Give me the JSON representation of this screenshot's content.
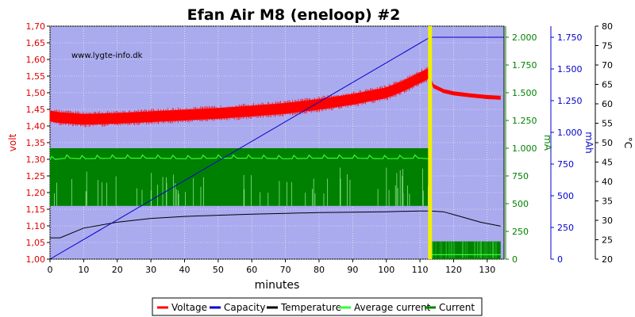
{
  "chart_data": {
    "type": "line",
    "title": "Efan Air M8 (eneloop) #2",
    "watermark": "www.lygte-info.dk",
    "xlabel": "minutes",
    "xlim": [
      0,
      135
    ],
    "x_ticks": [
      "0",
      "10",
      "20",
      "30",
      "40",
      "50",
      "60",
      "70",
      "80",
      "90",
      "100",
      "110",
      "120",
      "130"
    ],
    "background": "#aaaaee",
    "grid": true,
    "legend_position": "bottom",
    "marker_line": {
      "x": 113,
      "color": "#f0f000"
    },
    "axes": {
      "volt": {
        "label": "volt",
        "color": "#e00000",
        "min": 1.0,
        "max": 1.7,
        "ticks": [
          "1,00",
          "1,05",
          "1,10",
          "1,15",
          "1,20",
          "1,25",
          "1,30",
          "1,35",
          "1,40",
          "1,45",
          "1,50",
          "1,55",
          "1,60",
          "1,65",
          "1,70"
        ]
      },
      "mA": {
        "label": "mA",
        "color": "#008000",
        "min": 0,
        "max": 2100,
        "ticks": [
          "0",
          "250",
          "500",
          "750",
          "1.000",
          "1.250",
          "1.500",
          "1.750",
          "2.000"
        ]
      },
      "mAh": {
        "label": "mAh",
        "color": "#0000cc",
        "min": 0,
        "max": 1837.5,
        "ticks": [
          "0",
          "250",
          "500",
          "750",
          "1.000",
          "1.250",
          "1.500",
          "1.750"
        ]
      },
      "temp": {
        "label": "°C",
        "color": "#000000",
        "min": 20,
        "max": 80,
        "ticks": [
          "20",
          "25",
          "30",
          "35",
          "40",
          "45",
          "50",
          "55",
          "60",
          "65",
          "70",
          "75",
          "80"
        ]
      }
    },
    "series": [
      {
        "name": "Voltage",
        "color": "#ff0000",
        "axis": "volt",
        "points": [
          [
            0,
            1.43
          ],
          [
            3,
            1.425
          ],
          [
            10,
            1.42
          ],
          [
            20,
            1.423
          ],
          [
            30,
            1.428
          ],
          [
            40,
            1.433
          ],
          [
            50,
            1.438
          ],
          [
            60,
            1.445
          ],
          [
            70,
            1.453
          ],
          [
            80,
            1.465
          ],
          [
            90,
            1.48
          ],
          [
            100,
            1.5
          ],
          [
            105,
            1.52
          ],
          [
            110,
            1.545
          ],
          [
            113,
            1.56
          ]
        ],
        "band": [
          0.016,
          0.016
        ],
        "after": [
          [
            113,
            1.545
          ],
          [
            114,
            1.52
          ],
          [
            117,
            1.505
          ],
          [
            120,
            1.498
          ],
          [
            125,
            1.492
          ],
          [
            130,
            1.487
          ],
          [
            134,
            1.485
          ]
        ],
        "after_band": [
          0.006,
          0.006
        ]
      },
      {
        "name": "Capacity",
        "color": "#0000cc",
        "axis": "mAh",
        "points": [
          [
            0,
            0
          ],
          [
            113,
            1750
          ],
          [
            135,
            1750
          ]
        ]
      },
      {
        "name": "Temperature",
        "color": "#000000",
        "axis": "temp",
        "points": [
          [
            0,
            25.5
          ],
          [
            3,
            25.5
          ],
          [
            10,
            28
          ],
          [
            20,
            29.5
          ],
          [
            30,
            30.5
          ],
          [
            40,
            31
          ],
          [
            50,
            31.3
          ],
          [
            60,
            31.6
          ],
          [
            70,
            31.8
          ],
          [
            80,
            32
          ],
          [
            90,
            32.1
          ],
          [
            100,
            32.2
          ],
          [
            110,
            32.4
          ],
          [
            113,
            32.4
          ],
          [
            117,
            32.2
          ],
          [
            122,
            31
          ],
          [
            128,
            29.5
          ],
          [
            134,
            28.5
          ]
        ]
      },
      {
        "name": "Average current",
        "color": "#33ff33",
        "axis": "mA",
        "points": [
          [
            0,
            895
          ],
          [
            5,
            910
          ],
          [
            10,
            905
          ],
          [
            20,
            910
          ],
          [
            30,
            910
          ],
          [
            40,
            905
          ],
          [
            50,
            910
          ],
          [
            60,
            910
          ],
          [
            70,
            905
          ],
          [
            80,
            910
          ],
          [
            90,
            910
          ],
          [
            100,
            905
          ],
          [
            110,
            910
          ],
          [
            112.5,
            905
          ],
          [
            113,
            860
          ],
          [
            113.3,
            40
          ],
          [
            134,
            40
          ]
        ]
      },
      {
        "name": "Current",
        "color": "#008000",
        "axis": "mA",
        "band_range": [
          [
            0,
            112.8,
            480,
            1000
          ],
          [
            113.2,
            134,
            0,
            160
          ]
        ]
      }
    ]
  }
}
